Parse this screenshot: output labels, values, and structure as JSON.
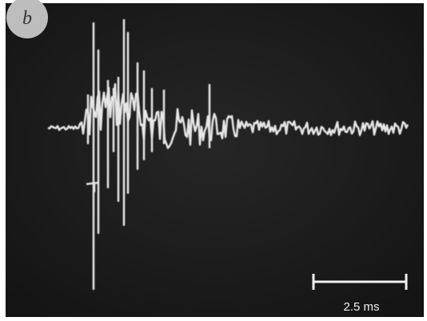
{
  "panel_label": "b",
  "scale_bar": {
    "label": "2.5 ms"
  }
}
